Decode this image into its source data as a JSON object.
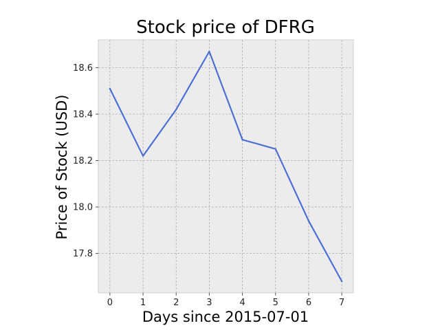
{
  "chart_data": {
    "type": "line",
    "title": "Stock price of DFRG",
    "xlabel": "Days since 2015-07-01",
    "ylabel": "Price of Stock (USD)",
    "x": [
      0,
      1,
      2,
      3,
      4,
      5,
      6,
      7
    ],
    "series": [
      {
        "values": [
          18.51,
          18.22,
          18.42,
          18.67,
          18.29,
          18.25,
          17.94,
          17.68
        ],
        "color": "#4c6fd4"
      }
    ],
    "xticks": [
      "0",
      "1",
      "2",
      "3",
      "4",
      "5",
      "6",
      "7"
    ],
    "yticks": [
      "17.8",
      "18.0",
      "18.2",
      "18.4",
      "18.6"
    ],
    "xlim": [
      -0.35,
      7.35
    ],
    "ylim": [
      17.63,
      18.72
    ],
    "grid": true,
    "plot_background": "#ececec",
    "grid_color": "#b0b0b0"
  }
}
